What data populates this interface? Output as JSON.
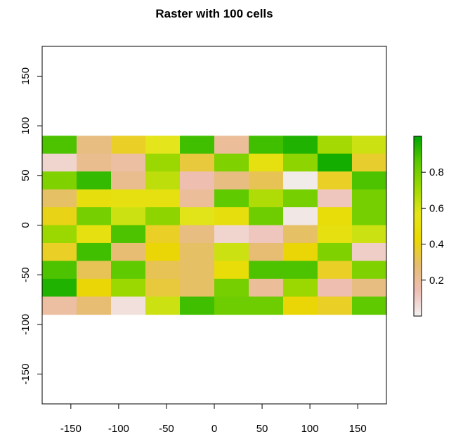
{
  "chart_data": {
    "type": "heatmap",
    "title": "Raster with 100 cells",
    "xlabel": "",
    "ylabel": "",
    "xlim": [
      -180,
      180
    ],
    "ylim": [
      -180,
      180
    ],
    "extent": {
      "xmin": -180,
      "xmax": 180,
      "ymin": -90,
      "ymax": 90
    },
    "ncols": 10,
    "nrows": 10,
    "x_ticks": [
      -150,
      -100,
      -50,
      0,
      50,
      100,
      150
    ],
    "y_ticks": [
      -150,
      -100,
      -50,
      0,
      50,
      100,
      150
    ],
    "values": [
      [
        0.88,
        0.25,
        0.38,
        0.57,
        0.9,
        0.2,
        0.9,
        0.95,
        0.7,
        0.62
      ],
      [
        0.08,
        0.22,
        0.18,
        0.72,
        0.35,
        0.78,
        0.52,
        0.75,
        0.97,
        0.37
      ],
      [
        0.78,
        0.92,
        0.22,
        0.65,
        0.15,
        0.25,
        0.32,
        0.02,
        0.38,
        0.88
      ],
      [
        0.3,
        0.5,
        0.52,
        0.52,
        0.2,
        0.85,
        0.68,
        0.8,
        0.12,
        0.8
      ],
      [
        0.4,
        0.8,
        0.62,
        0.75,
        0.58,
        0.5,
        0.82,
        0.03,
        0.48,
        0.8
      ],
      [
        0.72,
        0.52,
        0.88,
        0.38,
        0.25,
        0.08,
        0.12,
        0.3,
        0.52,
        0.62
      ],
      [
        0.38,
        0.9,
        0.28,
        0.42,
        0.3,
        0.62,
        0.28,
        0.42,
        0.78,
        0.1
      ],
      [
        0.88,
        0.32,
        0.85,
        0.32,
        0.3,
        0.48,
        0.88,
        0.88,
        0.38,
        0.78
      ],
      [
        0.95,
        0.42,
        0.72,
        0.35,
        0.3,
        0.8,
        0.2,
        0.72,
        0.15,
        0.25
      ],
      [
        0.18,
        0.28,
        0.05,
        0.62,
        0.9,
        0.82,
        0.82,
        0.42,
        0.38,
        0.85
      ]
    ],
    "colorbar": {
      "ticks": [
        0.2,
        0.4,
        0.6,
        0.8
      ],
      "tick_labels": [
        "0.2",
        "0.4",
        "0.6",
        "0.8"
      ],
      "range": [
        0.0,
        1.0
      ],
      "palette": [
        "#F2F2F2",
        "#EEBEB4",
        "#E6BD70",
        "#EAD800",
        "#E4E51A",
        "#9ED800",
        "#5CC900",
        "#00A600"
      ],
      "palette_name": "terrain"
    },
    "legend": "right"
  }
}
